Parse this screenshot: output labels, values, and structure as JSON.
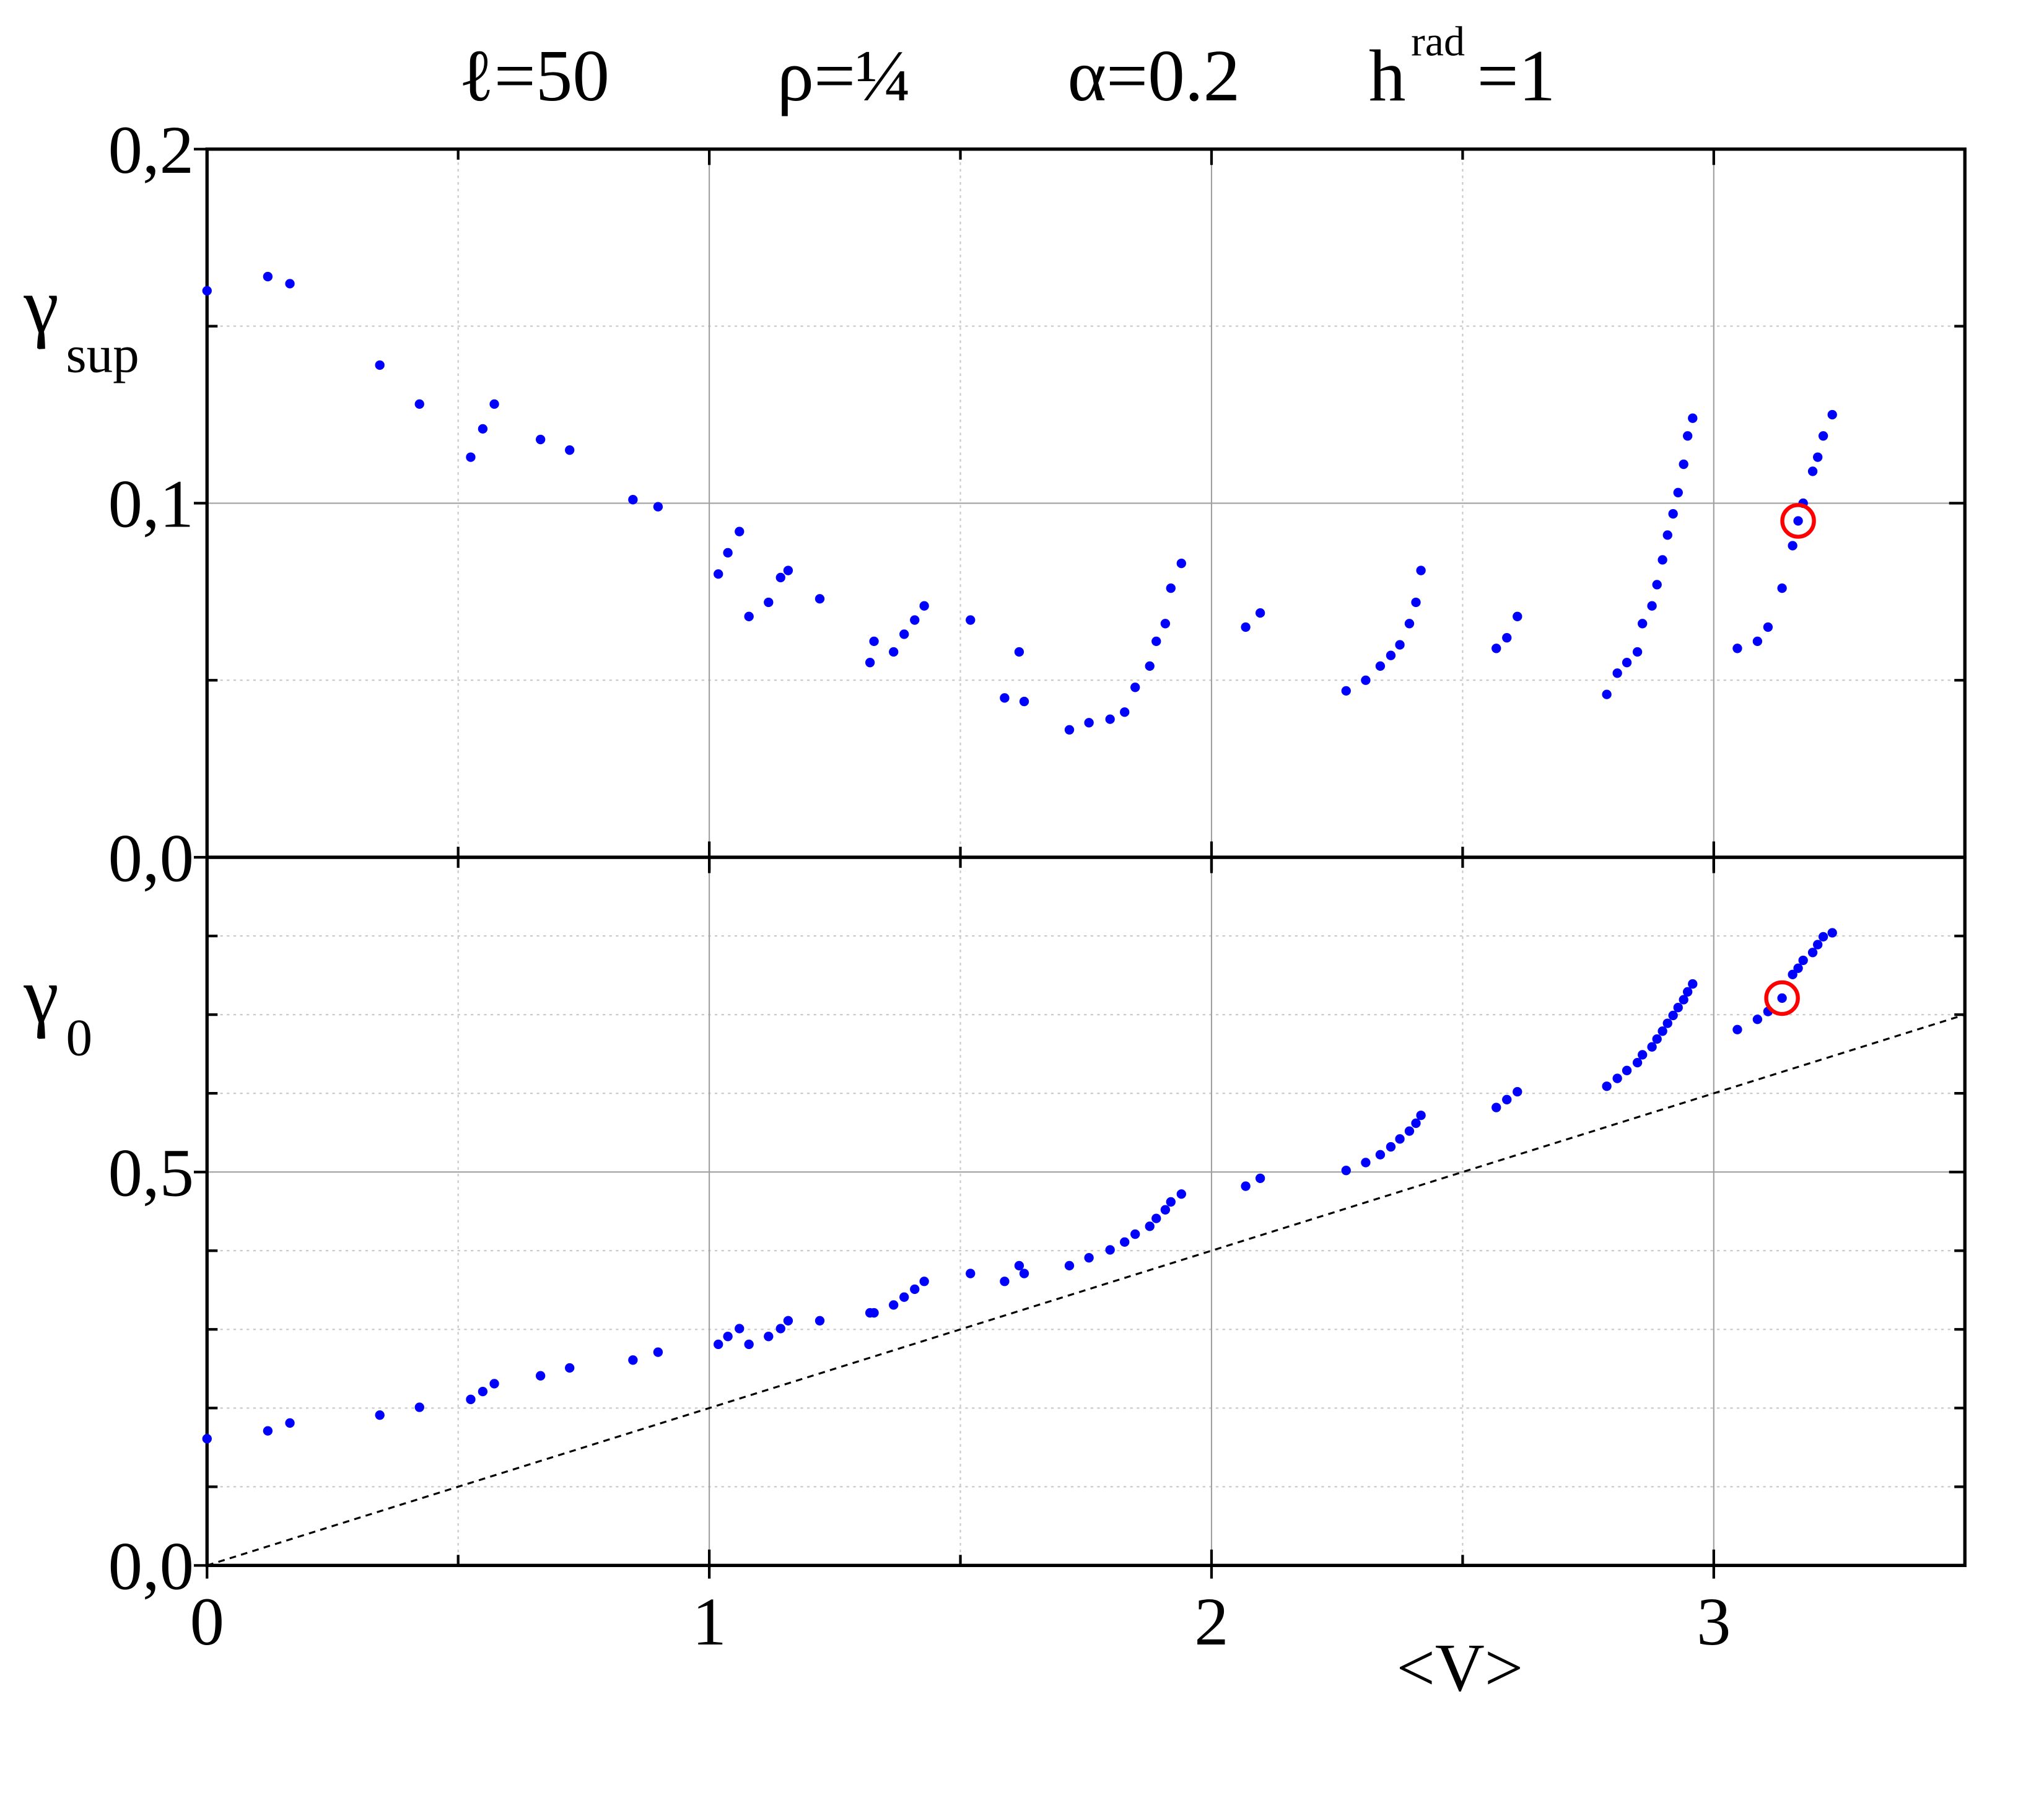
{
  "chart_data": [
    {
      "type": "scatter",
      "title_parts": [
        "ℓ=50",
        "ρ=¼",
        "α=0.2",
        "h",
        "rad",
        "=1"
      ],
      "ylabel": "γ",
      "ylabel_sub": "sup",
      "color": "#0000ff",
      "highlight_color": "#ff0000",
      "highlight_index": 72,
      "xlim": [
        0,
        3.5
      ],
      "xticks": [
        0,
        1,
        2,
        3
      ],
      "minor_xticks": [
        0.5,
        1.5,
        2.5
      ],
      "x_tick_labels": false,
      "ylim": [
        0,
        0.2
      ],
      "yticks": [
        {
          "value": 0,
          "label": "0,0"
        },
        {
          "value": 0.1,
          "label": "0,1"
        },
        {
          "value": 0.2,
          "label": "0,2"
        }
      ],
      "minor_yticks": [
        0.05,
        0.15
      ],
      "grid": true,
      "x": [
        0.0,
        0.121,
        0.165,
        0.344,
        0.423,
        0.525,
        0.549,
        0.572,
        0.664,
        0.722,
        0.848,
        0.898,
        1.018,
        1.037,
        1.06,
        1.079,
        1.118,
        1.142,
        1.157,
        1.22,
        1.32,
        1.328,
        1.367,
        1.388,
        1.409,
        1.428,
        1.52,
        1.588,
        1.617,
        1.627,
        1.717,
        1.756,
        1.798,
        1.827,
        1.848,
        1.877,
        1.89,
        1.908,
        1.919,
        1.94,
        2.068,
        2.097,
        2.268,
        2.307,
        2.336,
        2.357,
        2.375,
        2.394,
        2.407,
        2.417,
        2.567,
        2.588,
        2.609,
        2.787,
        2.808,
        2.827,
        2.848,
        2.858,
        2.877,
        2.887,
        2.898,
        2.908,
        2.919,
        2.929,
        2.94,
        2.948,
        2.958,
        3.047,
        3.087,
        3.108,
        3.136,
        3.157,
        3.168,
        3.178,
        3.197,
        3.207,
        3.218,
        3.236
      ],
      "values": [
        0.16,
        0.164,
        0.162,
        0.139,
        0.128,
        0.113,
        0.121,
        0.128,
        0.118,
        0.115,
        0.101,
        0.099,
        0.08,
        0.086,
        0.092,
        0.068,
        0.072,
        0.079,
        0.081,
        0.073,
        0.055,
        0.061,
        0.058,
        0.063,
        0.067,
        0.071,
        0.067,
        0.045,
        0.058,
        0.044,
        0.036,
        0.038,
        0.039,
        0.041,
        0.048,
        0.054,
        0.061,
        0.066,
        0.076,
        0.083,
        0.065,
        0.069,
        0.047,
        0.05,
        0.054,
        0.057,
        0.06,
        0.066,
        0.072,
        0.081,
        0.059,
        0.062,
        0.068,
        0.046,
        0.052,
        0.055,
        0.058,
        0.066,
        0.071,
        0.077,
        0.084,
        0.091,
        0.097,
        0.103,
        0.111,
        0.119,
        0.124,
        0.059,
        0.061,
        0.065,
        0.076,
        0.088,
        0.095,
        0.1,
        0.109,
        0.113,
        0.119,
        0.125
      ]
    },
    {
      "type": "scatter",
      "ylabel": "γ",
      "ylabel_sub": "0",
      "xlabel": "<V>",
      "color": "#0000ff",
      "highlight_color": "#ff0000",
      "highlight_index": 70,
      "xlim": [
        0,
        3.5
      ],
      "xticks": [
        0,
        1,
        2,
        3
      ],
      "minor_xticks": [
        0.5,
        1.5,
        2.5
      ],
      "x_tick_labels": true,
      "ylim": [
        0,
        0.9
      ],
      "yticks": [
        {
          "value": 0,
          "label": "0,0"
        },
        {
          "value": 0.5,
          "label": "0,5"
        }
      ],
      "minor_yticks": [
        0.1,
        0.2,
        0.3,
        0.4,
        0.6,
        0.7,
        0.8
      ],
      "grid": true,
      "reference_line": {
        "x": [
          0,
          3.5
        ],
        "y": [
          0,
          0.7
        ]
      },
      "x": [
        0.0,
        0.121,
        0.165,
        0.344,
        0.423,
        0.525,
        0.549,
        0.572,
        0.664,
        0.722,
        0.848,
        0.898,
        1.018,
        1.037,
        1.06,
        1.079,
        1.118,
        1.142,
        1.157,
        1.22,
        1.32,
        1.328,
        1.367,
        1.388,
        1.409,
        1.428,
        1.52,
        1.588,
        1.617,
        1.627,
        1.717,
        1.756,
        1.798,
        1.827,
        1.848,
        1.877,
        1.89,
        1.908,
        1.919,
        1.94,
        2.068,
        2.097,
        2.268,
        2.307,
        2.336,
        2.357,
        2.375,
        2.394,
        2.407,
        2.417,
        2.567,
        2.588,
        2.609,
        2.787,
        2.808,
        2.827,
        2.848,
        2.858,
        2.877,
        2.887,
        2.898,
        2.908,
        2.919,
        2.929,
        2.94,
        2.948,
        2.958,
        3.047,
        3.087,
        3.108,
        3.136,
        3.157,
        3.168,
        3.178,
        3.197,
        3.207,
        3.218,
        3.236
      ],
      "values": [
        0.161,
        0.171,
        0.181,
        0.191,
        0.201,
        0.211,
        0.221,
        0.231,
        0.241,
        0.251,
        0.261,
        0.271,
        0.281,
        0.291,
        0.301,
        0.281,
        0.291,
        0.301,
        0.311,
        0.311,
        0.321,
        0.321,
        0.331,
        0.341,
        0.351,
        0.361,
        0.371,
        0.361,
        0.381,
        0.371,
        0.381,
        0.391,
        0.401,
        0.411,
        0.421,
        0.431,
        0.441,
        0.452,
        0.462,
        0.472,
        0.482,
        0.492,
        0.502,
        0.512,
        0.522,
        0.532,
        0.542,
        0.552,
        0.562,
        0.572,
        0.582,
        0.592,
        0.602,
        0.609,
        0.619,
        0.629,
        0.639,
        0.649,
        0.659,
        0.669,
        0.679,
        0.689,
        0.699,
        0.709,
        0.719,
        0.729,
        0.739,
        0.681,
        0.694,
        0.704,
        0.721,
        0.751,
        0.759,
        0.769,
        0.779,
        0.789,
        0.799,
        0.804
      ]
    }
  ]
}
